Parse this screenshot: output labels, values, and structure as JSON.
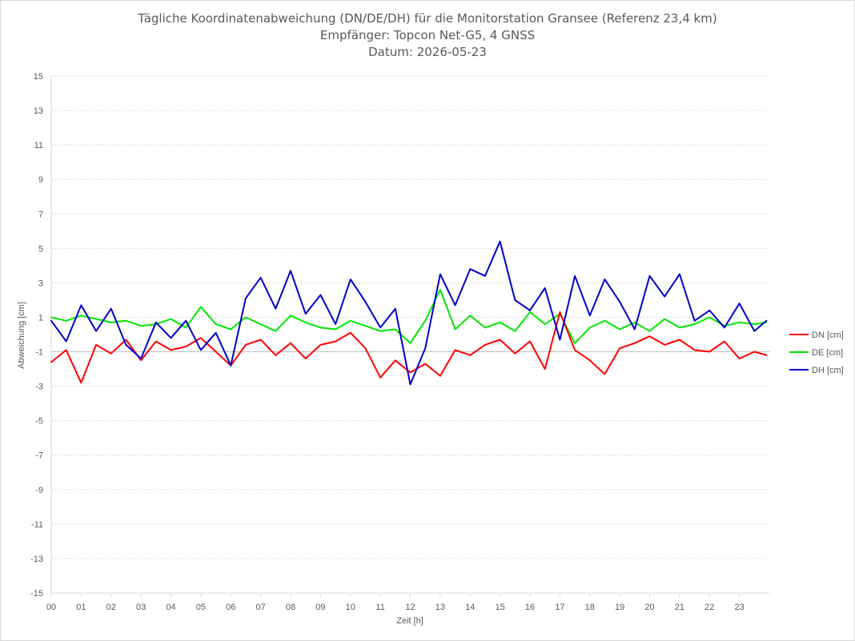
{
  "chart_data": {
    "type": "line",
    "title": [
      "Tägliche Koordinatenabweichung (DN/DE/DH) für die Monitorstation Gransee (Referenz 23,4 km)",
      "Empfänger: Topcon Net-G5, 4 GNSS",
      "Datum: 2026-05-23"
    ],
    "xlabel": "Zeit [h]",
    "ylabel": "Abweichung [cm]",
    "xlim": [
      0,
      24
    ],
    "ylim": [
      -15,
      15
    ],
    "x_ticks": [
      "00",
      "01",
      "02",
      "03",
      "04",
      "05",
      "06",
      "07",
      "08",
      "09",
      "10",
      "11",
      "12",
      "13",
      "14",
      "15",
      "16",
      "17",
      "18",
      "19",
      "20",
      "21",
      "22",
      "23"
    ],
    "y_ticks": [
      15,
      13,
      11,
      9,
      7,
      5,
      3,
      1,
      -1,
      -3,
      -5,
      -7,
      -9,
      -11,
      -13,
      -15
    ],
    "grid": true,
    "legend_position": "right",
    "series": [
      {
        "name": "DN [cm]",
        "color": "#ff0000",
        "x": [
          0,
          0.5,
          1,
          1.5,
          2,
          2.5,
          3,
          3.5,
          4,
          4.5,
          5,
          5.5,
          6,
          6.5,
          7,
          7.5,
          8,
          8.5,
          9,
          9.5,
          10,
          10.5,
          11,
          11.5,
          12,
          12.5,
          13,
          13.5,
          14,
          14.5,
          15,
          15.5,
          16,
          16.5,
          17,
          17.5,
          18,
          18.5,
          19,
          19.5,
          20,
          20.5,
          21,
          21.5,
          22,
          22.5,
          23,
          23.5,
          23.9
        ],
        "values": [
          -1.6,
          -0.9,
          -2.8,
          -0.6,
          -1.1,
          -0.3,
          -1.5,
          -0.4,
          -0.9,
          -0.7,
          -0.2,
          -1.0,
          -1.8,
          -0.6,
          -0.3,
          -1.2,
          -0.5,
          -1.4,
          -0.6,
          -0.4,
          0.1,
          -0.8,
          -2.5,
          -1.5,
          -2.2,
          -1.7,
          -2.4,
          -0.9,
          -1.2,
          -0.6,
          -0.3,
          -1.1,
          -0.4,
          -2.0,
          1.3,
          -0.9,
          -1.5,
          -2.3,
          -0.8,
          -0.5,
          -0.1,
          -0.6,
          -0.3,
          -0.9,
          -1.0,
          -0.4,
          -1.4,
          -1.0,
          -1.2
        ]
      },
      {
        "name": "DE [cm]",
        "color": "#00e600",
        "x": [
          0,
          0.5,
          1,
          1.5,
          2,
          2.5,
          3,
          3.5,
          4,
          4.5,
          5,
          5.5,
          6,
          6.5,
          7,
          7.5,
          8,
          8.5,
          9,
          9.5,
          10,
          10.5,
          11,
          11.5,
          12,
          12.5,
          13,
          13.5,
          14,
          14.5,
          15,
          15.5,
          16,
          16.5,
          17,
          17.5,
          18,
          18.5,
          19,
          19.5,
          20,
          20.5,
          21,
          21.5,
          22,
          22.5,
          23,
          23.5,
          23.9
        ],
        "values": [
          1.0,
          0.8,
          1.1,
          0.9,
          0.7,
          0.8,
          0.5,
          0.6,
          0.9,
          0.4,
          1.6,
          0.6,
          0.3,
          1.0,
          0.6,
          0.2,
          1.1,
          0.7,
          0.4,
          0.3,
          0.8,
          0.5,
          0.2,
          0.3,
          -0.5,
          0.8,
          2.6,
          0.3,
          1.1,
          0.4,
          0.7,
          0.2,
          1.3,
          0.6,
          1.2,
          -0.5,
          0.4,
          0.8,
          0.3,
          0.7,
          0.2,
          0.9,
          0.4,
          0.6,
          1.0,
          0.5,
          0.7,
          0.6,
          0.7
        ]
      },
      {
        "name": "DH [cm]",
        "color": "#0000cc",
        "x": [
          0,
          0.5,
          1,
          1.5,
          2,
          2.5,
          3,
          3.5,
          4,
          4.5,
          5,
          5.5,
          6,
          6.5,
          7,
          7.5,
          8,
          8.5,
          9,
          9.5,
          10,
          10.5,
          11,
          11.5,
          12,
          12.5,
          13,
          13.5,
          14,
          14.5,
          15,
          15.5,
          16,
          16.5,
          17,
          17.5,
          18,
          18.5,
          19,
          19.5,
          20,
          20.5,
          21,
          21.5,
          22,
          22.5,
          23,
          23.5,
          23.9
        ],
        "values": [
          0.8,
          -0.4,
          1.7,
          0.2,
          1.5,
          -0.6,
          -1.4,
          0.7,
          -0.2,
          0.8,
          -0.9,
          0.1,
          -1.8,
          2.1,
          3.3,
          1.5,
          3.7,
          1.2,
          2.3,
          0.6,
          3.2,
          1.9,
          0.4,
          1.5,
          -2.9,
          -0.8,
          3.5,
          1.7,
          3.8,
          3.4,
          5.4,
          2.0,
          1.4,
          2.7,
          -0.3,
          3.4,
          1.1,
          3.2,
          1.9,
          0.3,
          3.4,
          2.2,
          3.5,
          0.8,
          1.4,
          0.4,
          1.8,
          0.2,
          0.8
        ]
      }
    ]
  }
}
